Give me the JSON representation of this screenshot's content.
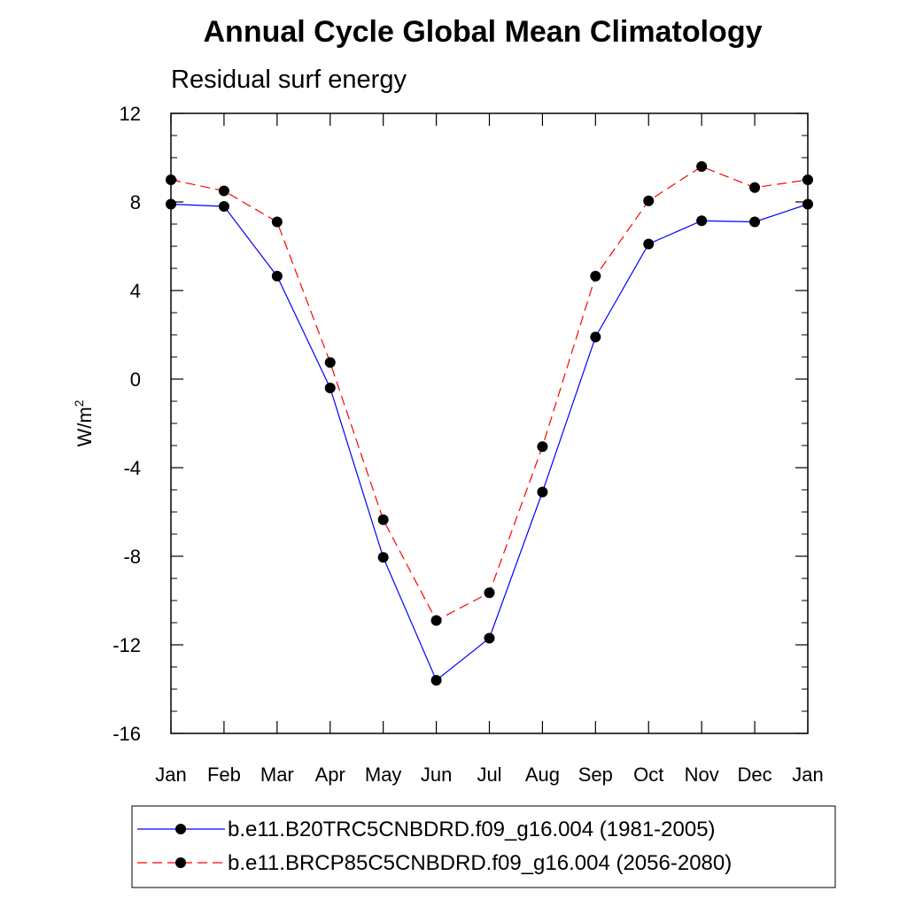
{
  "chart_data": {
    "type": "line",
    "title": "Annual Cycle Global Mean Climatology",
    "subtitle": "Residual surf energy",
    "ylabel": "W/m",
    "ylabel_sup": "2",
    "xlabel": "",
    "categories": [
      "Jan",
      "Feb",
      "Mar",
      "Apr",
      "May",
      "Jun",
      "Jul",
      "Aug",
      "Sep",
      "Oct",
      "Nov",
      "Dec",
      "Jan"
    ],
    "ylim": [
      -16,
      12
    ],
    "yticks": [
      12,
      8,
      4,
      0,
      -4,
      -8,
      -12,
      -16
    ],
    "ytick_labels": [
      "12",
      "8",
      "4",
      "0",
      "-4",
      "-8",
      "-12",
      "-16"
    ],
    "grid": false,
    "legend_position": "bottom",
    "series": [
      {
        "name": "b.e11.B20TRC5CNBDRD.f09_g16.004 (1981-2005)",
        "color": "#0000ff",
        "dashed": false,
        "values": [
          7.9,
          7.8,
          4.65,
          -0.4,
          -8.05,
          -13.6,
          -11.7,
          -5.1,
          1.9,
          6.1,
          7.15,
          7.1,
          7.9
        ]
      },
      {
        "name": "b.e11.BRCP85C5CNBDRD.f09_g16.004 (2056-2080)",
        "color": "#ff0000",
        "dashed": true,
        "values": [
          9.0,
          8.5,
          7.1,
          0.75,
          -6.35,
          -10.9,
          -9.65,
          -3.05,
          4.65,
          8.05,
          9.6,
          8.65,
          9.0
        ]
      }
    ]
  }
}
